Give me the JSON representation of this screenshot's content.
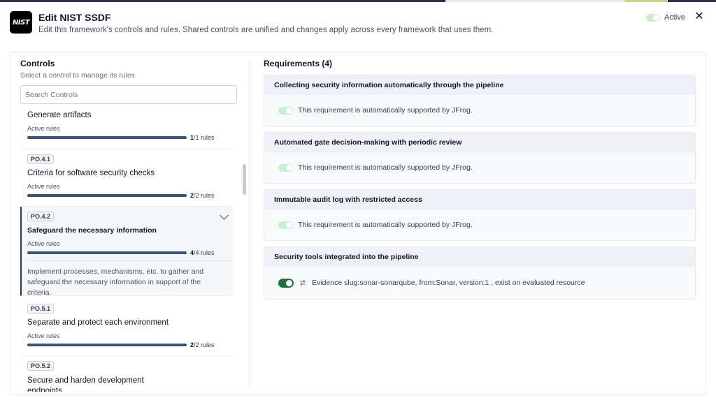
{
  "header": {
    "logo_text": "NIST",
    "title": "Edit NIST SSDF",
    "subtitle": "Edit this framework's controls and rules. Shared controls are unified and changes apply across every framework that uses them.",
    "active_label": "Active",
    "close_icon": "close-icon"
  },
  "controls": {
    "title": "Controls",
    "subtitle": "Select a control to manage its rules",
    "search_placeholder": "Search Controls",
    "items": [
      {
        "id": "",
        "name": "Generate artifacts",
        "rules_label": "Active rules",
        "active": "1",
        "total": "/1 rules",
        "progress": 1.0
      },
      {
        "id": "PO.4.1",
        "name": "Criteria for software security checks",
        "rules_label": "Active rules",
        "active": "2",
        "total": "/2 rules",
        "progress": 1.0
      },
      {
        "id": "PO.4.2",
        "name": "Safeguard the necessary information",
        "rules_label": "Active rules",
        "active": "4",
        "total": "/4 rules",
        "progress": 1.0,
        "selected": true,
        "description": "Implement processes, mechanisms, etc. to gather and safeguard the necessary information in support of the criteria."
      },
      {
        "id": "PO.5.1",
        "name": "Separate and protect each environment",
        "rules_label": "Active rules",
        "active": "2",
        "total": "/2 rules",
        "progress": 1.0
      },
      {
        "id": "PO.5.2",
        "name": "Secure and harden development endpoints",
        "rules_label": "",
        "active": "",
        "total": ""
      }
    ]
  },
  "requirements": {
    "title": "Requirements (4)",
    "items": [
      {
        "title": "Collecting security information automatically through the pipeline",
        "text": "This requirement is automatically supported by JFrog.",
        "enabled": false
      },
      {
        "title": "Automated gate decision-making with periodic review",
        "text": "This requirement is automatically supported by JFrog.",
        "enabled": false
      },
      {
        "title": "Immutable audit log with restricted access",
        "text": "This requirement is automatically supported by JFrog.",
        "enabled": false
      },
      {
        "title": "Security tools integrated into the pipeline",
        "text": "Evidence slug:sonar-sonarqube, from:Sonar, version:1 , exist on evaluated resource",
        "enabled": true,
        "icon": "evidence-icon"
      }
    ]
  },
  "colors": {
    "accent": "#233b63",
    "progress": "#3a5379",
    "toggle_on": "#1f6f3f",
    "toggle_off": "#c8efcf"
  }
}
